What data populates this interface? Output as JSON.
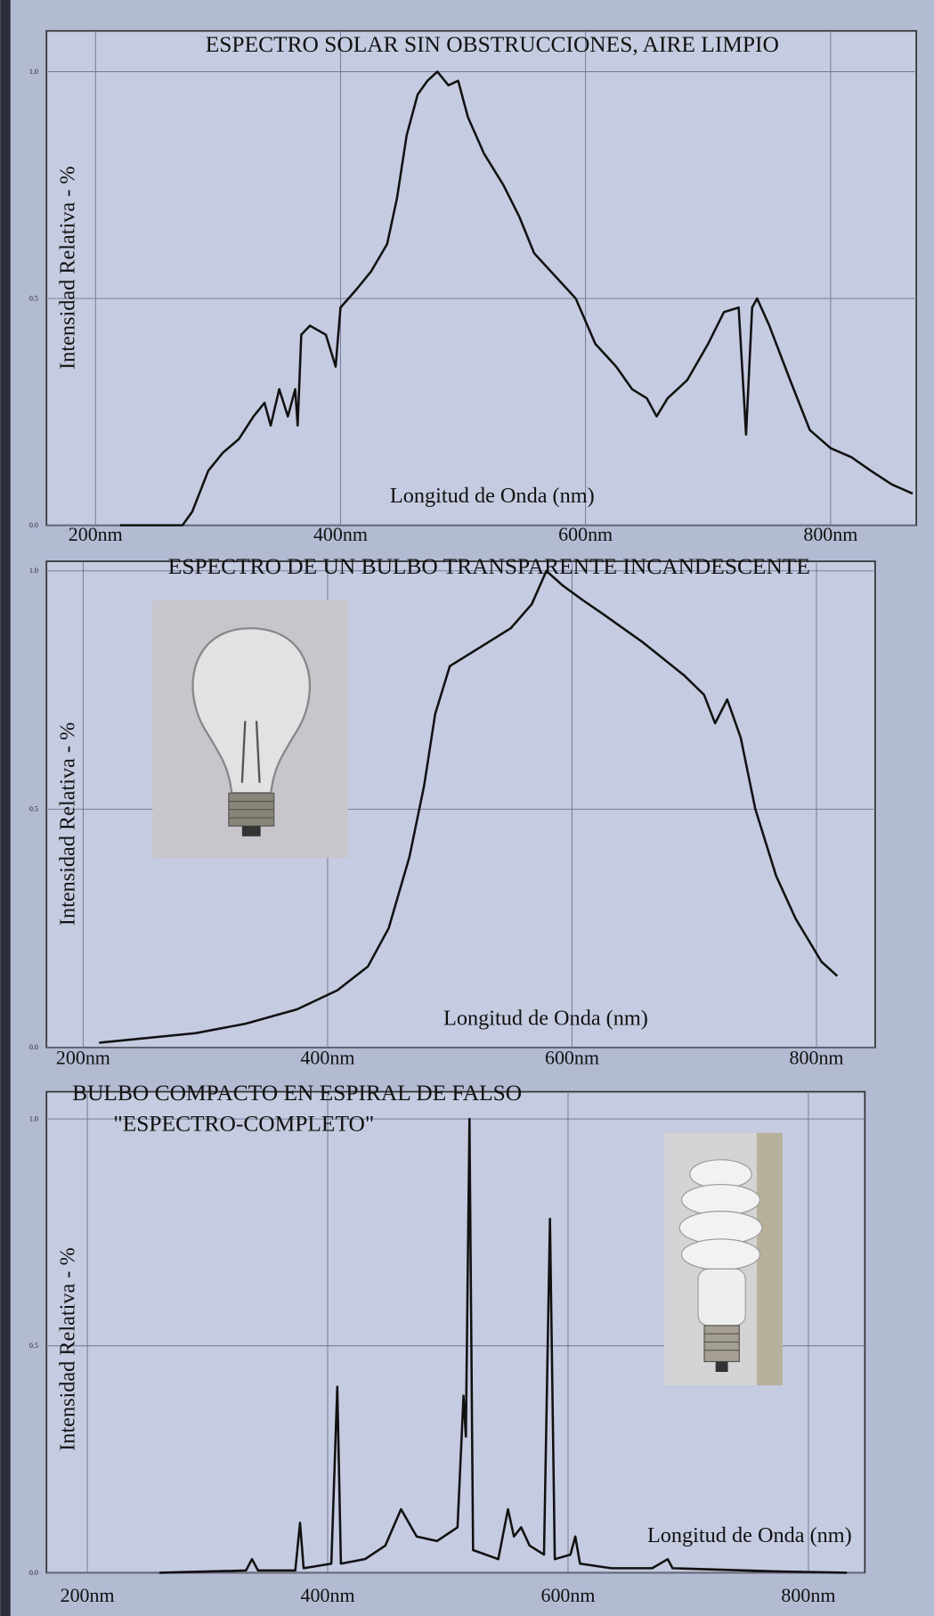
{
  "chart_data": [
    {
      "type": "line",
      "title": "ESPECTRO SOLAR SIN OBSTRUCCIONES, AIRE LIMPIO",
      "xlabel": "Longitud de Onda (nm)",
      "ylabel": "Intensidad Relativa - %",
      "x": [
        220,
        271,
        279,
        292,
        304,
        317,
        329,
        338,
        343,
        350,
        357,
        363,
        365,
        368,
        375,
        388,
        396,
        400,
        413,
        425,
        438,
        446,
        454,
        463,
        471,
        479,
        488,
        496,
        504,
        517,
        533,
        546,
        558,
        575,
        592,
        608,
        625,
        638,
        650,
        658,
        667,
        683,
        700,
        713,
        725,
        731,
        736,
        740,
        750,
        767,
        783,
        800,
        817,
        833,
        850,
        867
      ],
      "values": [
        0,
        0,
        0.03,
        0.12,
        0.16,
        0.19,
        0.24,
        0.27,
        0.22,
        0.3,
        0.24,
        0.3,
        0.22,
        0.42,
        0.44,
        0.42,
        0.35,
        0.48,
        0.52,
        0.56,
        0.62,
        0.72,
        0.86,
        0.95,
        0.98,
        1.0,
        0.97,
        0.98,
        0.9,
        0.82,
        0.75,
        0.68,
        0.6,
        0.55,
        0.5,
        0.4,
        0.35,
        0.3,
        0.28,
        0.24,
        0.28,
        0.32,
        0.4,
        0.47,
        0.48,
        0.2,
        0.48,
        0.5,
        0.44,
        0.32,
        0.21,
        0.17,
        0.15,
        0.12,
        0.09,
        0.07
      ],
      "color": "#111111",
      "xlim": [
        160,
        870
      ],
      "ylim": [
        0,
        1.09
      ],
      "xticks": [
        {
          "value": 200,
          "label": "200nm"
        },
        {
          "value": 400,
          "label": "400nm"
        },
        {
          "value": 600,
          "label": "600nm"
        },
        {
          "value": 800,
          "label": "800nm"
        }
      ],
      "yticks": [
        {
          "value": 0,
          "label": "0.0"
        },
        {
          "value": 0.5,
          "label": "0.5"
        },
        {
          "value": 1,
          "label": "1.0"
        }
      ],
      "grid": true
    },
    {
      "type": "line",
      "title": "ESPECTRO DE UN BULBO TRANSPARENTE INCANDESCENTE",
      "xlabel": "Longitud de Onda (nm)",
      "ylabel": "Intensidad Relativa - %",
      "x": [
        213,
        292,
        333,
        375,
        408,
        433,
        450,
        467,
        479,
        488,
        500,
        525,
        550,
        567,
        579,
        592,
        608,
        625,
        658,
        692,
        708,
        717,
        727,
        738,
        750,
        767,
        783,
        804,
        817
      ],
      "values": [
        0.01,
        0.03,
        0.05,
        0.08,
        0.12,
        0.17,
        0.25,
        0.4,
        0.55,
        0.7,
        0.8,
        0.84,
        0.88,
        0.93,
        1.0,
        0.97,
        0.94,
        0.91,
        0.85,
        0.78,
        0.74,
        0.68,
        0.73,
        0.65,
        0.5,
        0.36,
        0.27,
        0.18,
        0.15
      ],
      "color": "#111111",
      "xlim": [
        170,
        848
      ],
      "ylim": [
        0,
        1.02
      ],
      "xticks": [
        {
          "value": 200,
          "label": "200nm"
        },
        {
          "value": 400,
          "label": "400nm"
        },
        {
          "value": 600,
          "label": "600nm"
        },
        {
          "value": 800,
          "label": "800nm"
        }
      ],
      "yticks": [
        {
          "value": 0,
          "label": "0.0"
        },
        {
          "value": 0.5,
          "label": "0.5"
        },
        {
          "value": 1,
          "label": "1.0"
        }
      ],
      "grid": true
    },
    {
      "type": "line",
      "title": [
        "BULBO COMPACTO EN ESPIRAL DE FALSO",
        "\"ESPECTRO-COMPLETO\""
      ],
      "xlabel": "Longitud de Onda (nm)",
      "ylabel": "Intensidad Relativa - %",
      "x": [
        260,
        332,
        337,
        342,
        373,
        377,
        380,
        403,
        408,
        411,
        431,
        448,
        461,
        474,
        491,
        508,
        513,
        515,
        518,
        521,
        542,
        550,
        555,
        561,
        568,
        580,
        585,
        589,
        602,
        606,
        610,
        636,
        670,
        683,
        687,
        773,
        832
      ],
      "values": [
        0,
        0.005,
        0.03,
        0.005,
        0.005,
        0.11,
        0.01,
        0.02,
        0.41,
        0.02,
        0.03,
        0.06,
        0.14,
        0.08,
        0.07,
        0.1,
        0.39,
        0.3,
        1.0,
        0.05,
        0.03,
        0.14,
        0.08,
        0.1,
        0.06,
        0.04,
        0.78,
        0.03,
        0.04,
        0.08,
        0.02,
        0.01,
        0.01,
        0.03,
        0.01,
        0.003,
        0
      ],
      "color": "#111111",
      "xlim": [
        166,
        847
      ],
      "ylim": [
        0,
        1.06
      ],
      "xticks": [
        {
          "value": 200,
          "label": "200nm"
        },
        {
          "value": 400,
          "label": "400nm"
        },
        {
          "value": 600,
          "label": "600nm"
        },
        {
          "value": 800,
          "label": "800nm"
        }
      ],
      "yticks": [
        {
          "value": 0,
          "label": "0.0"
        },
        {
          "value": 0.5,
          "label": "0.5"
        },
        {
          "value": 1,
          "label": "1.0"
        }
      ],
      "grid": true
    }
  ]
}
